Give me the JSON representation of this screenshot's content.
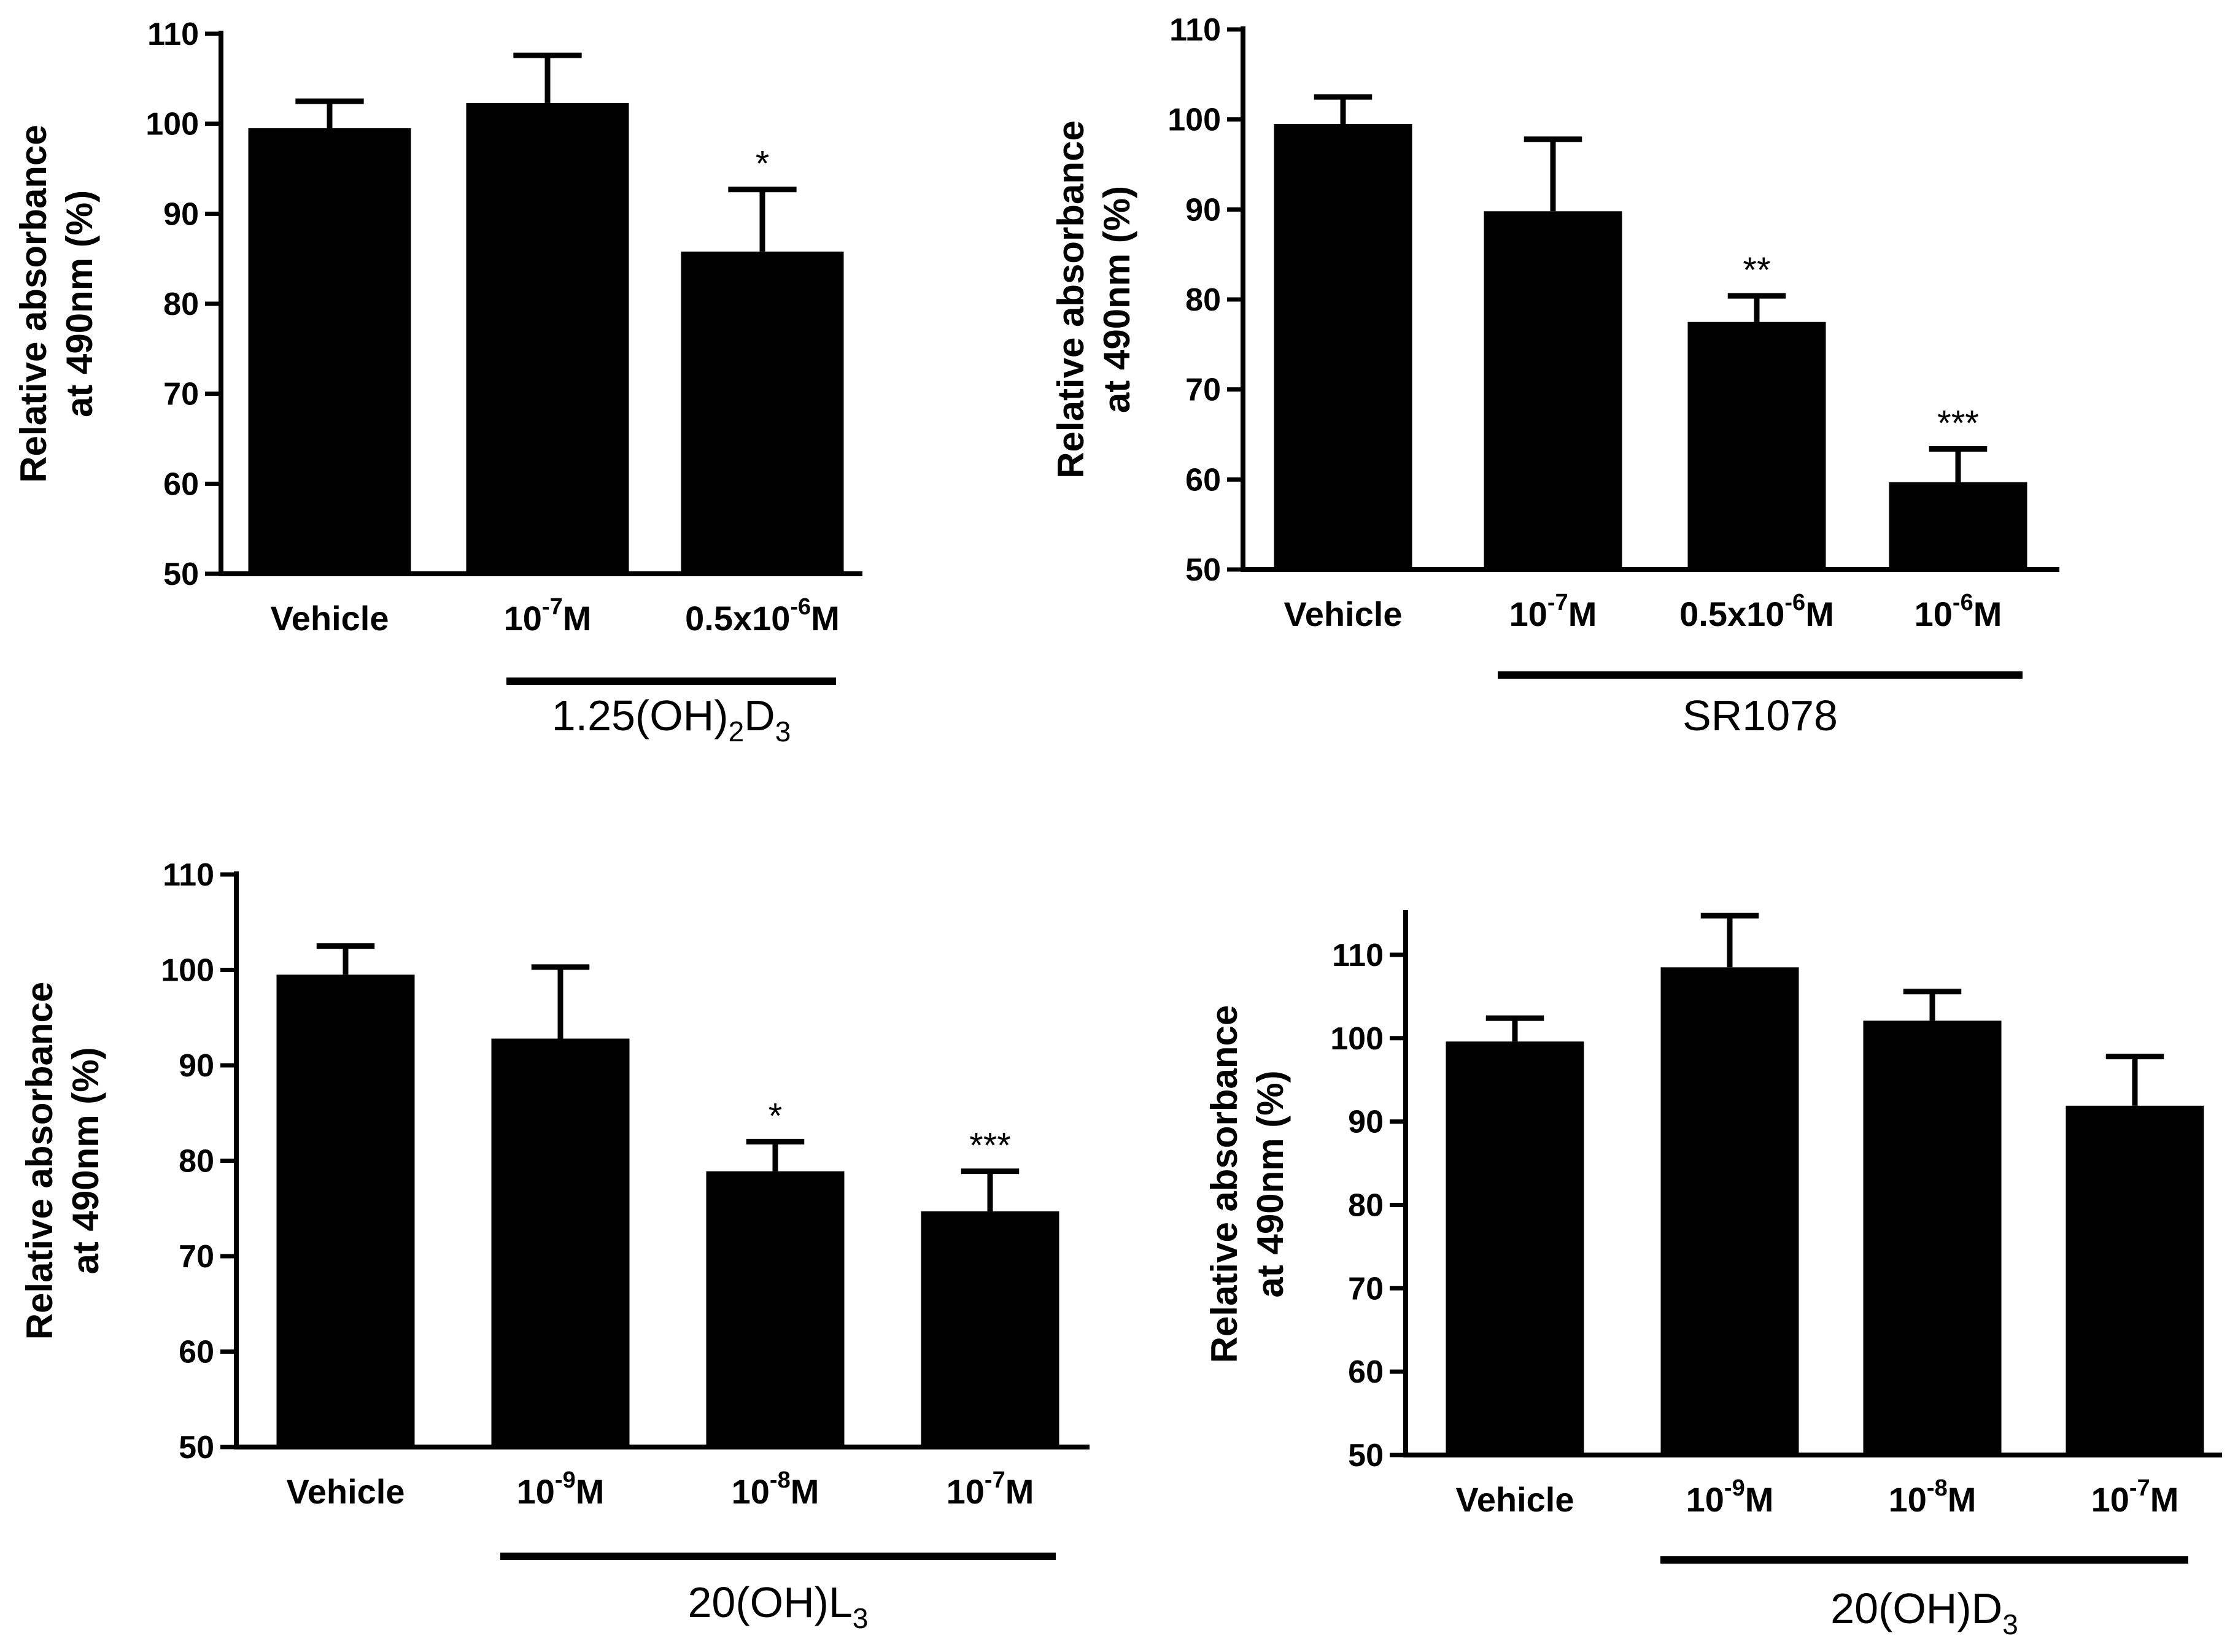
{
  "chart_data": [
    {
      "type": "bar",
      "title": "",
      "ylabel": [
        "Relative absorbance",
        "at 490nm (%)"
      ],
      "ylim": [
        50,
        110
      ],
      "yticks": [
        50,
        60,
        70,
        80,
        90,
        100,
        110
      ],
      "categories": [
        {
          "base": "Vehicle",
          "exp": ""
        },
        {
          "base": "10",
          "exp": "-7",
          "unit": "M"
        },
        {
          "base": "0.5x10",
          "exp": "-6",
          "unit": "M"
        }
      ],
      "values": [
        99.5,
        102.3,
        85.8
      ],
      "errors": [
        3.0,
        5.3,
        6.9
      ],
      "significance": [
        "",
        "",
        "*"
      ],
      "group_label": {
        "base": "1.25(OH)",
        "sub1": "2",
        "mid": "D",
        "sub2": "3"
      },
      "group_span": [
        1,
        2
      ]
    },
    {
      "type": "bar",
      "title": "",
      "ylabel": [
        "Relative absorbance",
        "at 490nm (%)"
      ],
      "ylim": [
        50,
        110
      ],
      "yticks": [
        50,
        60,
        70,
        80,
        90,
        100,
        110
      ],
      "categories": [
        {
          "base": "Vehicle",
          "exp": ""
        },
        {
          "base": "10",
          "exp": "-7",
          "unit": "M"
        },
        {
          "base": "0.5x10",
          "exp": "-6",
          "unit": "M"
        },
        {
          "base": "10",
          "exp": "-6",
          "unit": "M"
        }
      ],
      "values": [
        99.5,
        89.8,
        77.5,
        59.7
      ],
      "errors": [
        3.0,
        8.0,
        2.9,
        3.7
      ],
      "significance": [
        "",
        "",
        "**",
        "***"
      ],
      "group_label": {
        "base": "SR1078"
      },
      "group_span": [
        1,
        3
      ]
    },
    {
      "type": "bar",
      "title": "",
      "ylabel": [
        "Relative absorbance",
        "at 490nm (%)"
      ],
      "ylim": [
        50,
        110
      ],
      "yticks": [
        50,
        60,
        70,
        80,
        90,
        100,
        110
      ],
      "categories": [
        {
          "base": "Vehicle",
          "exp": ""
        },
        {
          "base": "10",
          "exp": "-9",
          "unit": "M"
        },
        {
          "base": "10",
          "exp": "-8",
          "unit": "M"
        },
        {
          "base": "10",
          "exp": "-7",
          "unit": "M"
        }
      ],
      "values": [
        99.5,
        92.8,
        78.9,
        74.7
      ],
      "errors": [
        3.0,
        7.5,
        3.1,
        4.2
      ],
      "significance": [
        "",
        "",
        "*",
        "***"
      ],
      "group_label": {
        "base": "20(OH)L",
        "sub2": "3"
      },
      "group_span": [
        1,
        3
      ]
    },
    {
      "type": "bar",
      "title": "",
      "ylabel": [
        "Relative absorbance",
        "at 490nm (%)"
      ],
      "ylim": [
        50,
        115
      ],
      "yticks": [
        50,
        60,
        70,
        80,
        90,
        100,
        110
      ],
      "categories": [
        {
          "base": "Vehicle",
          "exp": ""
        },
        {
          "base": "10",
          "exp": "-9",
          "unit": "M"
        },
        {
          "base": "10",
          "exp": "-8",
          "unit": "M"
        },
        {
          "base": "10",
          "exp": "-7",
          "unit": "M"
        }
      ],
      "values": [
        99.6,
        108.5,
        102.1,
        91.9
      ],
      "errors": [
        2.8,
        6.2,
        3.5,
        5.9
      ],
      "significance": [
        "",
        "",
        "",
        ""
      ],
      "group_label": {
        "base": "20(OH)D",
        "sub2": "3"
      },
      "group_span": [
        1,
        3
      ]
    }
  ]
}
